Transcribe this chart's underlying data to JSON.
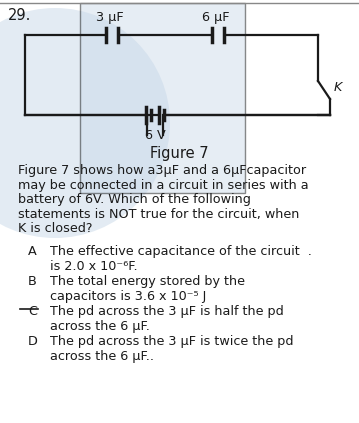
{
  "question_number": "29.",
  "figure_title": "Figure 7",
  "background_color": "#ffffff",
  "circuit_color": "#1a1a1a",
  "watermark_color": "#c8d8e8",
  "question_text_line1": "Figure 7 shows how a3μF and a 6μFcapacitor",
  "question_text_line2": "may be connected in a circuit in series with a",
  "question_text_line3": "battery of 6V. Which of the following",
  "question_text_line4": "statements is NOT true for the circuit, when",
  "question_text_line5": "K is closed?",
  "options": [
    {
      "label": "A",
      "text_line1": "The effective capacitance of the circuit  .",
      "text_line2": "is 2.0 x 10⁻⁶F.",
      "strikethrough": false
    },
    {
      "label": "B",
      "text_line1": "The total energy stored by the",
      "text_line2": "capacitors is 3.6 x 10⁻⁵ J",
      "strikethrough": false
    },
    {
      "label": "C",
      "text_line1": "The pd across the 3 μF is half the pd",
      "text_line2": "across the 6 μF.",
      "strikethrough": true
    },
    {
      "label": "D",
      "text_line1": "The pd across the 3 μF is twice the pd",
      "text_line2": "across the 6 μF..",
      "strikethrough": false
    }
  ],
  "cap1_label": "3 μF",
  "cap2_label": "6 μF",
  "battery_label": "6 V",
  "switch_label": "K",
  "text_fontsize": 9.2,
  "option_fontsize": 9.2,
  "label_fontsize": 9.2,
  "title_fontsize": 10.5,
  "qnum_fontsize": 10.5
}
